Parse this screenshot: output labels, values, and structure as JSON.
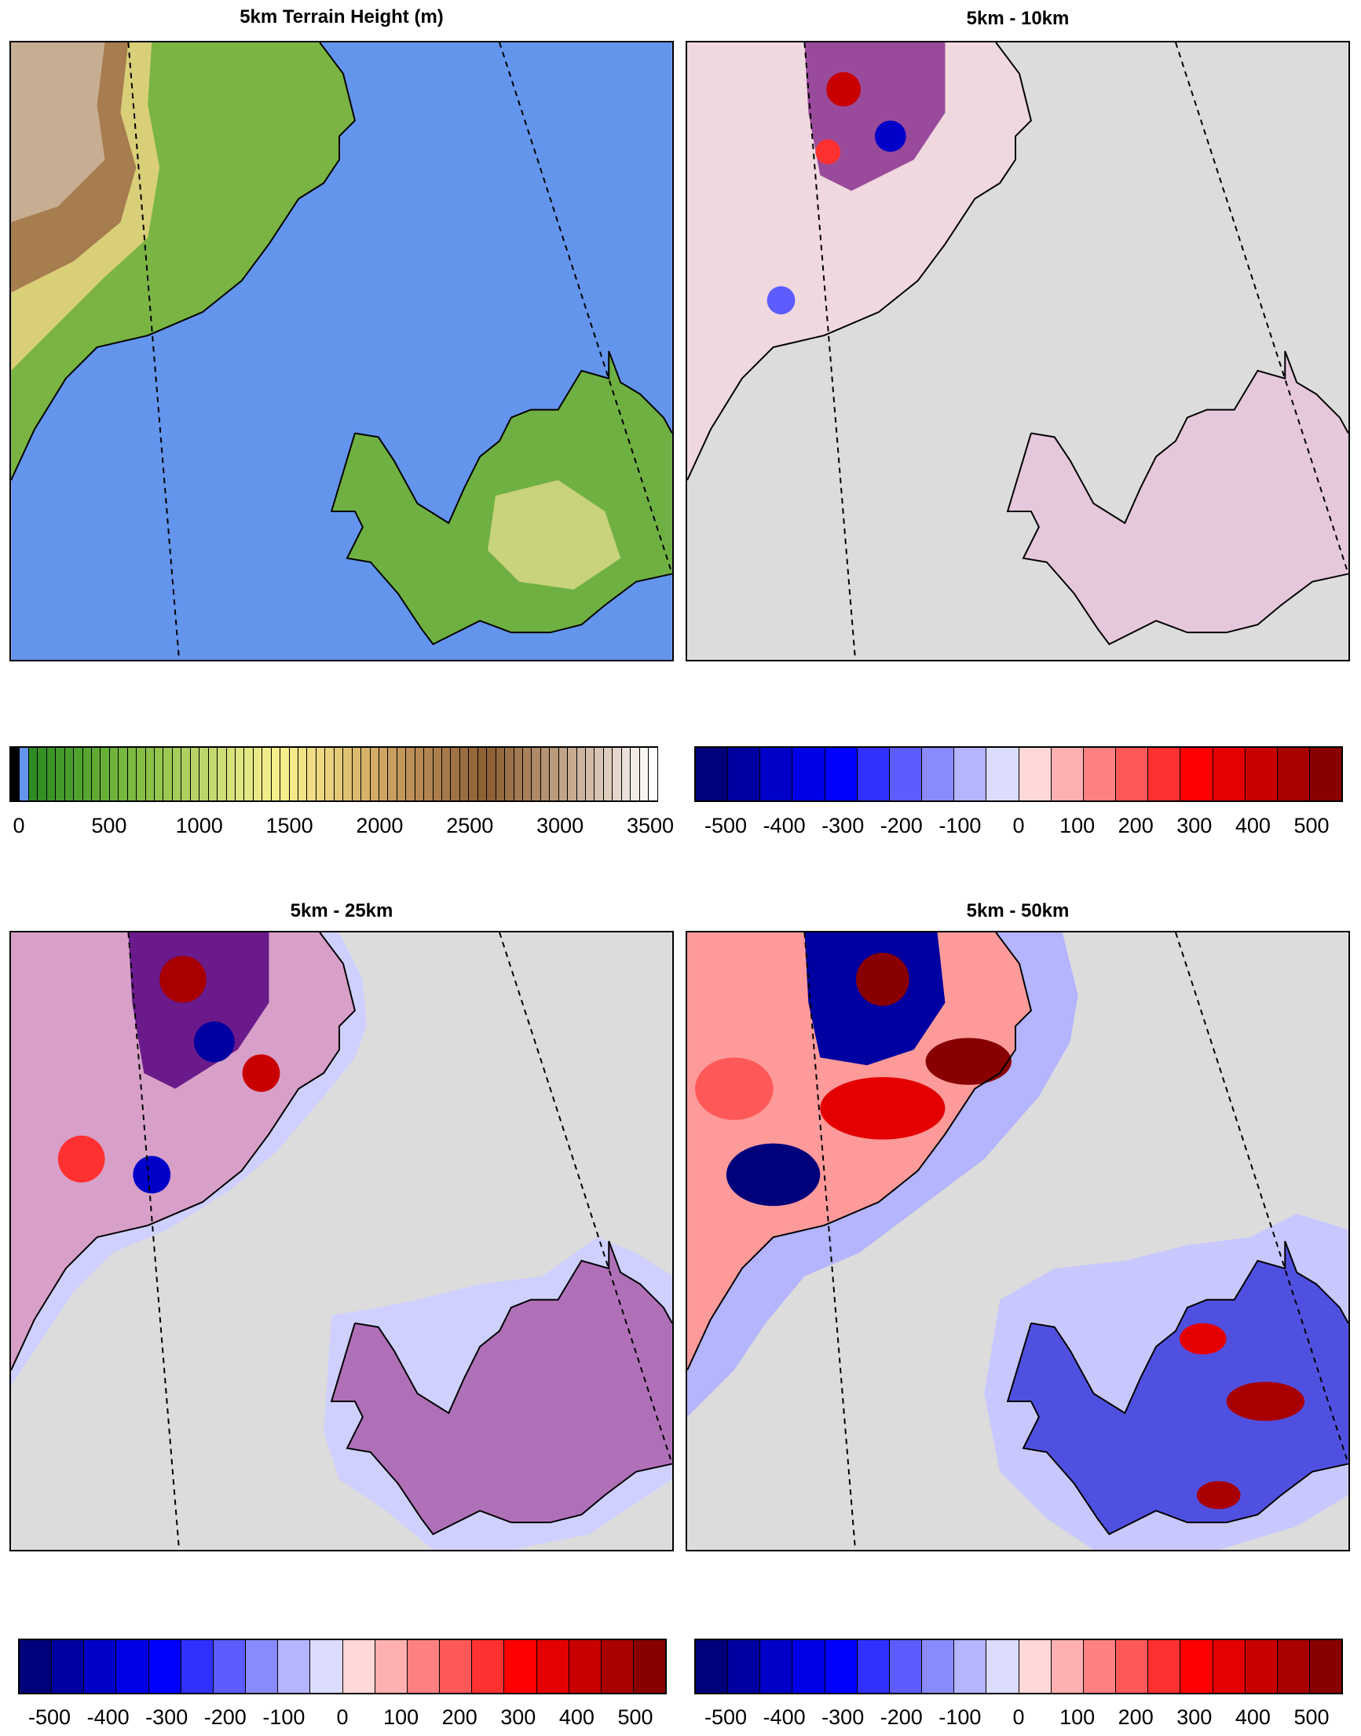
{
  "panels": [
    {
      "title": "5km Terrain Height (m)",
      "kind": "terrain"
    },
    {
      "title": "5km - 10km",
      "kind": "diff10"
    },
    {
      "title": "5km - 25km",
      "kind": "diff25"
    },
    {
      "title": "5km - 50km",
      "kind": "diff50"
    }
  ],
  "colorbars": {
    "terrain": {
      "labels": [
        "0",
        "500",
        "1000",
        "1500",
        "2000",
        "2500",
        "3000",
        "3500"
      ],
      "color_groups": {
        "below_zero": "#000000",
        "zero": "#6495ed",
        "greens": [
          "#2e8b22",
          "#4ea02c",
          "#70b43a",
          "#92c44c"
        ],
        "yellows": [
          "#b8d468",
          "#dfe680",
          "#f7f08c",
          "#ecd782"
        ],
        "browns": [
          "#d8b46a",
          "#c0945a",
          "#a6784a",
          "#8c5e32"
        ],
        "pale": [
          "#a8825e",
          "#c6aa90",
          "#e0d0c4",
          "#ffffff"
        ]
      }
    },
    "difference": {
      "labels": [
        "-500",
        "-400",
        "-300",
        "-200",
        "-100",
        "0",
        "100",
        "200",
        "300",
        "400",
        "500"
      ],
      "colors": [
        "#00007a",
        "#0000a0",
        "#0000c8",
        "#0000e6",
        "#0000ff",
        "#3030ff",
        "#5c5cff",
        "#8a8aff",
        "#b4b4ff",
        "#dcdcff",
        "#ffd8d8",
        "#ffb0b0",
        "#ff8080",
        "#ff5858",
        "#ff3030",
        "#ff0000",
        "#e40000",
        "#c80000",
        "#a80000",
        "#880000"
      ]
    }
  },
  "colors": {
    "ocean": "#6495ed",
    "no_data": "#dcdcdc",
    "coast": "#000000"
  }
}
